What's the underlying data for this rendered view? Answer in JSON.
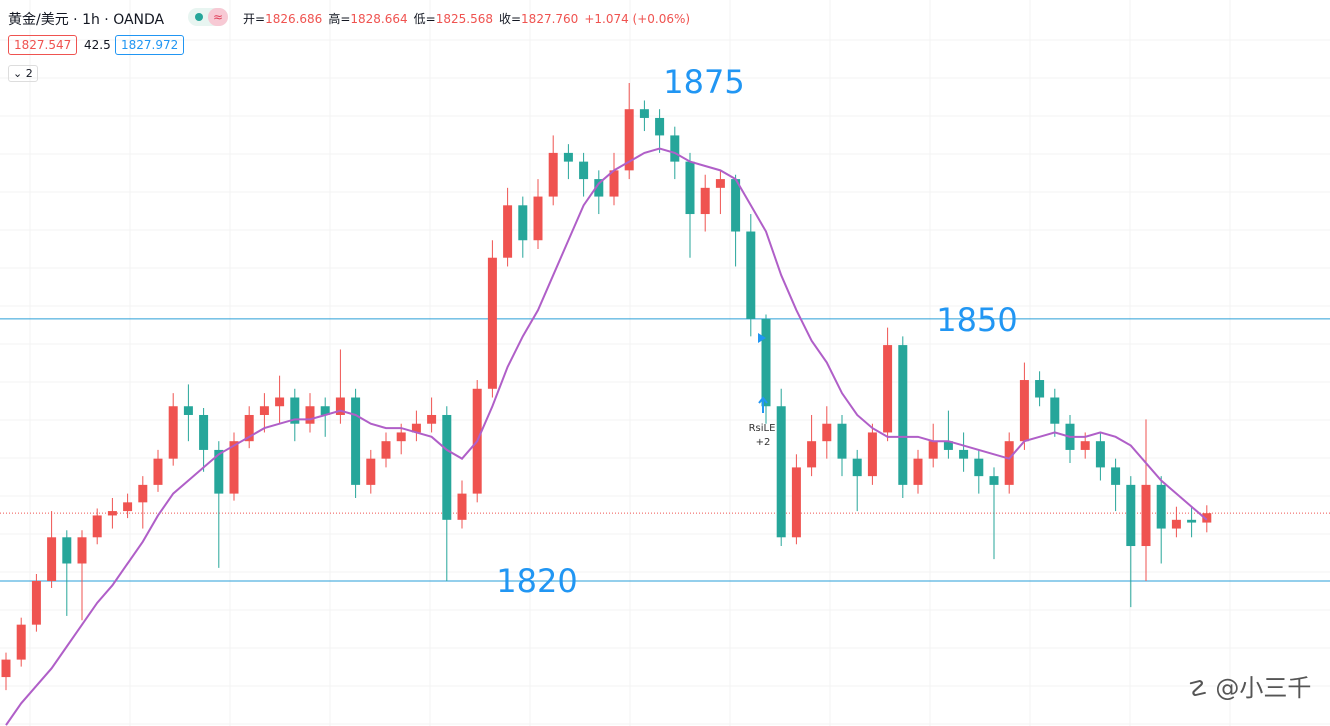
{
  "header": {
    "symbol": "黄金/美元 · 1h · OANDA",
    "ohlc": [
      {
        "label": "开=",
        "value": "1826.686"
      },
      {
        "label": "高=",
        "value": "1828.664"
      },
      {
        "label": "低=",
        "value": "1825.568"
      },
      {
        "label": "收=",
        "value": "1827.760"
      }
    ],
    "change": "+1.074 (+0.06%)",
    "sell": "1827.547",
    "spread": "42.5",
    "buy": "1827.972",
    "collapse": "2"
  },
  "chart_data": {
    "type": "candlestick",
    "up_color": "#ef5350",
    "down_color": "#26a69a",
    "ma_color": "#b05fc8",
    "level_color": "#2a9fd8",
    "ylim": [
      1803.4,
      1886.5
    ],
    "ohlc": [
      [
        1809,
        1811.8,
        1807.5,
        1811
      ],
      [
        1811,
        1815.8,
        1810.2,
        1815
      ],
      [
        1815,
        1820.8,
        1814.2,
        1820
      ],
      [
        1820,
        1828,
        1819.2,
        1825
      ],
      [
        1825,
        1825.8,
        1816,
        1822
      ],
      [
        1822,
        1825.8,
        1815.5,
        1825
      ],
      [
        1825,
        1828.3,
        1824.2,
        1827.5
      ],
      [
        1827.5,
        1829.5,
        1826,
        1828
      ],
      [
        1828,
        1830,
        1827.2,
        1829
      ],
      [
        1829,
        1832,
        1826,
        1831
      ],
      [
        1831,
        1835,
        1830.2,
        1834
      ],
      [
        1834,
        1841.5,
        1833.2,
        1840
      ],
      [
        1840,
        1842.5,
        1836,
        1839
      ],
      [
        1839,
        1839.8,
        1832.5,
        1835
      ],
      [
        1835,
        1836,
        1821.5,
        1830
      ],
      [
        1830,
        1837,
        1829.2,
        1836
      ],
      [
        1836,
        1840,
        1835.2,
        1839
      ],
      [
        1839,
        1841.5,
        1837,
        1840
      ],
      [
        1840,
        1843.5,
        1838,
        1841
      ],
      [
        1841,
        1842,
        1836,
        1838
      ],
      [
        1838,
        1841.5,
        1837,
        1840
      ],
      [
        1840,
        1841,
        1836.5,
        1839
      ],
      [
        1839,
        1846.5,
        1838,
        1841
      ],
      [
        1841,
        1842,
        1829.5,
        1831
      ],
      [
        1831,
        1835,
        1830,
        1834
      ],
      [
        1834,
        1837,
        1833,
        1836
      ],
      [
        1836,
        1838,
        1834.5,
        1837
      ],
      [
        1837,
        1839.5,
        1836,
        1838
      ],
      [
        1838,
        1841,
        1837,
        1839
      ],
      [
        1839,
        1840,
        1820,
        1827
      ],
      [
        1827,
        1831.5,
        1826,
        1830
      ],
      [
        1830,
        1843,
        1829,
        1842
      ],
      [
        1842,
        1859,
        1841,
        1857
      ],
      [
        1857,
        1865,
        1856,
        1863
      ],
      [
        1863,
        1864,
        1857,
        1859
      ],
      [
        1859,
        1866,
        1858,
        1864
      ],
      [
        1864,
        1871,
        1863,
        1869
      ],
      [
        1869,
        1870,
        1866,
        1868
      ],
      [
        1868,
        1869,
        1864,
        1866
      ],
      [
        1866,
        1867,
        1862,
        1864
      ],
      [
        1864,
        1869,
        1863,
        1867
      ],
      [
        1867,
        1877,
        1866,
        1874
      ],
      [
        1874,
        1875,
        1871.5,
        1873
      ],
      [
        1873,
        1874,
        1869,
        1871
      ],
      [
        1871,
        1872,
        1866,
        1868
      ],
      [
        1868,
        1869,
        1857,
        1862
      ],
      [
        1862,
        1866.5,
        1860,
        1865
      ],
      [
        1865,
        1867,
        1862,
        1866
      ],
      [
        1866,
        1866.5,
        1856,
        1860
      ],
      [
        1860,
        1862,
        1848,
        1850
      ],
      [
        1850,
        1850.5,
        1838,
        1840
      ],
      [
        1840,
        1842,
        1824,
        1825
      ],
      [
        1825,
        1834.5,
        1824.2,
        1833
      ],
      [
        1833,
        1839,
        1832,
        1836
      ],
      [
        1836,
        1840,
        1834,
        1838
      ],
      [
        1838,
        1839,
        1832,
        1834
      ],
      [
        1834,
        1835,
        1828,
        1832
      ],
      [
        1832,
        1838,
        1831,
        1837
      ],
      [
        1837,
        1849,
        1836,
        1847
      ],
      [
        1847,
        1848,
        1829.5,
        1831
      ],
      [
        1831,
        1835,
        1830,
        1834
      ],
      [
        1834,
        1838,
        1833,
        1836
      ],
      [
        1836,
        1839.5,
        1834,
        1835
      ],
      [
        1835,
        1837,
        1832.5,
        1834
      ],
      [
        1834,
        1835,
        1830,
        1832
      ],
      [
        1832,
        1833,
        1822.5,
        1831
      ],
      [
        1831,
        1837,
        1830,
        1836
      ],
      [
        1836,
        1845,
        1835,
        1843
      ],
      [
        1843,
        1844,
        1840,
        1841
      ],
      [
        1841,
        1842,
        1836.5,
        1838
      ],
      [
        1838,
        1839,
        1833.5,
        1835
      ],
      [
        1835,
        1837,
        1834,
        1836
      ],
      [
        1836,
        1837,
        1831.5,
        1833
      ],
      [
        1833,
        1834,
        1828,
        1831
      ],
      [
        1831,
        1832,
        1817,
        1824
      ],
      [
        1824,
        1838.5,
        1820,
        1831
      ],
      [
        1831,
        1832,
        1822,
        1826
      ],
      [
        1826,
        1828.5,
        1825,
        1827
      ],
      [
        1827,
        1828.5,
        1825,
        1826.686
      ],
      [
        1826.686,
        1828.664,
        1825.568,
        1827.76
      ]
    ],
    "ma": [
      1803.5,
      1806,
      1808,
      1810,
      1812.5,
      1815,
      1817.5,
      1819.5,
      1822,
      1824.5,
      1827.5,
      1830,
      1831.5,
      1833,
      1834.5,
      1835.5,
      1836.5,
      1837.5,
      1838,
      1838.5,
      1838.5,
      1839,
      1839.5,
      1839,
      1838,
      1837.5,
      1837.5,
      1837,
      1836.5,
      1835,
      1834,
      1836,
      1840,
      1844.5,
      1848,
      1851,
      1855,
      1859,
      1863,
      1865.5,
      1867,
      1868,
      1869,
      1869.5,
      1869,
      1868,
      1867.5,
      1867,
      1866,
      1863,
      1860,
      1855,
      1851,
      1847.5,
      1845,
      1841.5,
      1839,
      1837.5,
      1836.5,
      1836.5,
      1836.5,
      1836,
      1836,
      1835.5,
      1835,
      1834.5,
      1834,
      1836,
      1836.5,
      1837,
      1836.5,
      1836.5,
      1837,
      1836.5,
      1835.5,
      1833.5,
      1831.5,
      1830,
      1828.5,
      1827
    ],
    "levels": [
      1850,
      1820
    ],
    "annotations": [
      "1875",
      "1850",
      "1820"
    ],
    "signal": {
      "name": "RsiLE",
      "count": "+2"
    }
  },
  "watermark": "@小三千"
}
